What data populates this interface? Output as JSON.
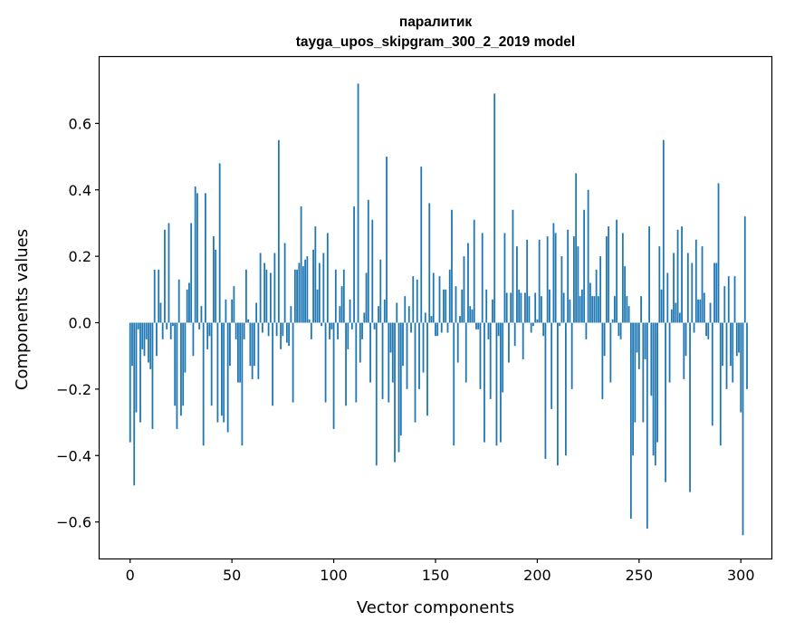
{
  "chart_data": {
    "type": "bar",
    "title": "паралитик",
    "subtitle": "tayga_upos_skipgram_300_2_2019 model",
    "xlabel": "Vector components",
    "ylabel": "Components values",
    "xlim": [
      -15,
      315
    ],
    "ylim": [
      -0.71,
      0.8
    ],
    "x_ticks": [
      0,
      50,
      100,
      150,
      200,
      250,
      300
    ],
    "x_tick_labels": [
      "0",
      "50",
      "100",
      "150",
      "200",
      "250",
      "300"
    ],
    "y_ticks": [
      -0.6,
      -0.4,
      -0.2,
      0.0,
      0.2,
      0.4,
      0.6
    ],
    "y_tick_labels": [
      "−0.6",
      "−0.4",
      "−0.2",
      "0.0",
      "0.2",
      "0.4",
      "0.6"
    ],
    "grid": false,
    "bar_color": "#1f77b4",
    "series": [
      {
        "values": [
          -0.36,
          -0.13,
          -0.49,
          -0.27,
          -0.02,
          -0.3,
          -0.08,
          -0.1,
          -0.05,
          -0.12,
          -0.14,
          -0.32,
          0.16,
          -0.1,
          0.16,
          0.06,
          -0.05,
          0.28,
          -0.02,
          0.3,
          -0.05,
          -0.01,
          -0.25,
          -0.32,
          0.13,
          -0.28,
          -0.25,
          -0.15,
          0.1,
          0.12,
          0.3,
          -0.1,
          0.41,
          0.39,
          -0.02,
          0.05,
          -0.37,
          0.39,
          -0.08,
          -0.04,
          -0.25,
          0.26,
          0.22,
          -0.3,
          0.48,
          -0.28,
          -0.3,
          0.07,
          -0.33,
          -0.13,
          0.07,
          0.11,
          -0.05,
          -0.18,
          -0.18,
          -0.37,
          -0.05,
          0.16,
          0.01,
          -0.13,
          -0.17,
          -0.13,
          0.06,
          -0.17,
          0.21,
          -0.03,
          0.18,
          0.16,
          -0.04,
          0.15,
          -0.25,
          0.21,
          -0.04,
          0.55,
          -0.08,
          -0.04,
          0.24,
          -0.06,
          -0.07,
          0.05,
          -0.24,
          0.16,
          0.16,
          0.18,
          0.35,
          0.17,
          0.19,
          0.2,
          0.01,
          -0.05,
          0.22,
          0.29,
          0.1,
          0.18,
          -0.01,
          0.21,
          -0.24,
          0.27,
          -0.05,
          -0.02,
          -0.32,
          0.16,
          -0.05,
          0.05,
          0.11,
          0.16,
          -0.25,
          -0.08,
          0.07,
          -0.02,
          0.35,
          -0.24,
          0.72,
          -0.12,
          -0.05,
          0.03,
          0.15,
          0.37,
          -0.18,
          0.31,
          -0.02,
          -0.43,
          0.05,
          0.19,
          -0.23,
          0.07,
          0.5,
          -0.24,
          -0.09,
          -0.18,
          -0.42,
          0.06,
          -0.39,
          -0.34,
          -0.13,
          0.08,
          -0.2,
          0.05,
          -0.03,
          0.14,
          -0.3,
          0.13,
          -0.2,
          0.47,
          -0.15,
          0.03,
          -0.28,
          0.36,
          0.02,
          0.15,
          -0.04,
          -0.04,
          0.14,
          -0.03,
          0.1,
          0.1,
          -0.03,
          0.16,
          0.34,
          -0.37,
          0.11,
          -0.12,
          0.02,
          0.1,
          0.2,
          -0.18,
          0.24,
          0.05,
          0.04,
          0.31,
          -0.02,
          -0.02,
          -0.2,
          0.27,
          -0.36,
          0.1,
          -0.05,
          -0.23,
          0.07,
          0.69,
          -0.37,
          -0.04,
          -0.36,
          -0.21,
          0.27,
          0.09,
          -0.12,
          0.09,
          0.34,
          -0.07,
          0.23,
          0.1,
          0.09,
          -0.11,
          0.09,
          0.25,
          0.08,
          -0.03,
          -0.01,
          0.09,
          0.01,
          0.25,
          0.08,
          -0.04,
          -0.41,
          0.26,
          0.1,
          -0.26,
          0.3,
          0.27,
          -0.43,
          -0.01,
          0.2,
          0.09,
          -0.4,
          0.28,
          0.07,
          -0.2,
          0.26,
          0.45,
          0.23,
          0.08,
          0.1,
          0.34,
          -0.05,
          0.4,
          0.12,
          0.08,
          0.08,
          0.16,
          0.08,
          0.2,
          -0.23,
          -0.1,
          0.26,
          0.29,
          -0.18,
          0.01,
          0.08,
          0.31,
          -0.04,
          -0.05,
          0.27,
          0.17,
          0.08,
          0.05,
          -0.59,
          -0.4,
          -0.3,
          -0.09,
          -0.14,
          0.08,
          -0.3,
          -0.11,
          -0.62,
          0.29,
          -0.22,
          -0.4,
          -0.43,
          -0.36,
          0.23,
          0.1,
          0.55,
          -0.48,
          0.15,
          -0.18,
          0.04,
          0.21,
          0.06,
          0.28,
          0.03,
          0.29,
          -0.17,
          -0.1,
          0.21,
          -0.51,
          0.18,
          -0.03,
          0.25,
          0.07,
          0.07,
          0.23,
          0.09,
          -0.04,
          -0.05,
          0.06,
          -0.31,
          0.18,
          0.18,
          0.42,
          -0.37,
          -0.13,
          0.11,
          -0.2,
          0.14,
          -0.13,
          -0.18,
          0.14,
          -0.1,
          -0.09,
          -0.27,
          -0.64,
          0.32,
          -0.2
        ]
      }
    ]
  }
}
